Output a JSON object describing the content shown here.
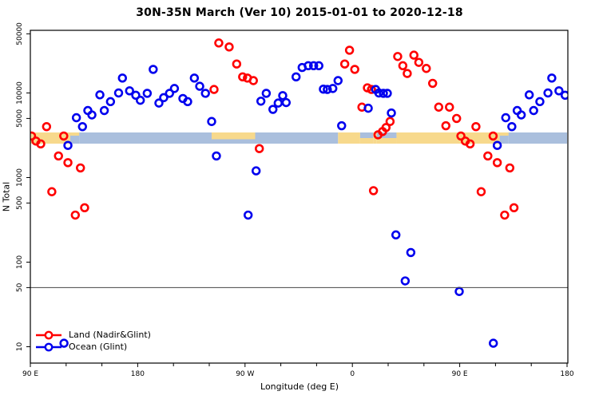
{
  "title": "30N-35N March (Ver 10)   2015-01-01 to 2020-12-18",
  "chart_data": {
    "type": "scatter",
    "title": "30N-35N March (Ver 10)   2015-01-01 to 2020-12-18",
    "xlabel": "Longitude (deg E)",
    "ylabel": "N Total",
    "x_axis": {
      "note": "longitude axis spans 450 deg, wrapping: 90E..180..90W..0..90E..180; points with lon 90E-180E are drawn twice",
      "range_deg_continuous": [
        90,
        540
      ],
      "major_ticks": [
        {
          "deg": 90,
          "label": "90 E"
        },
        {
          "deg": 180,
          "label": "180"
        },
        {
          "deg": 270,
          "label": "90 W"
        },
        {
          "deg": 360,
          "label": "0"
        },
        {
          "deg": 450,
          "label": "90 E"
        },
        {
          "deg": 540,
          "label": "180"
        }
      ],
      "minor_ticks_deg": [
        120,
        150,
        210,
        240,
        300,
        330,
        390,
        420,
        480,
        510
      ]
    },
    "y_axis": {
      "scale": "log10",
      "range": [
        6,
        55000
      ],
      "ticks": [
        10,
        50,
        100,
        500,
        1000,
        5000,
        10000,
        50000
      ],
      "reference_line": 50
    },
    "legend": {
      "position": "bottom-left",
      "entries": [
        {
          "label": "Land (Nadir&Glint)",
          "color": "#ff0000"
        },
        {
          "label": "Ocean (Glint)",
          "color": "#0000ee"
        }
      ]
    },
    "map_band": {
      "description": "30N-35N latitude strip of world map drawn across plot at N~2500-3400",
      "n_top": 3400,
      "n_bottom": 2500,
      "land_color": "#f7d98c",
      "ocean_color": "#aabfdd",
      "segments": [
        {
          "from": 90,
          "to": 123.5,
          "type": "land"
        },
        {
          "from": 123.5,
          "to": 131,
          "type": "islands"
        },
        {
          "from": 131,
          "to": 242,
          "type": "ocean"
        },
        {
          "from": 242,
          "to": 278.5,
          "type": "land_top"
        },
        {
          "from": 278.5,
          "to": 348,
          "type": "ocean"
        },
        {
          "from": 348,
          "to": 366.5,
          "type": "land"
        },
        {
          "from": 366.5,
          "to": 377.5,
          "type": "ocean_top"
        },
        {
          "from": 377.5,
          "to": 380.5,
          "type": "land"
        },
        {
          "from": 380.5,
          "to": 397,
          "type": "ocean_top"
        },
        {
          "from": 397,
          "to": 483.5,
          "type": "land"
        },
        {
          "from": 483.5,
          "to": 491,
          "type": "islands"
        },
        {
          "from": 491,
          "to": 540,
          "type": "ocean"
        }
      ]
    },
    "series": [
      {
        "name": "Land (Nadir&Glint)",
        "color": "#ff0000",
        "marker": "open-circle",
        "points_lon_n": [
          [
            91,
            3100
          ],
          [
            94.7,
            2700
          ],
          [
            98.7,
            2500
          ],
          [
            103.6,
            4000
          ],
          [
            108,
            680
          ],
          [
            113.6,
            1800
          ],
          [
            118,
            3100
          ],
          [
            121.5,
            1500
          ],
          [
            127.7,
            360
          ],
          [
            132,
            1300
          ],
          [
            135.5,
            440
          ],
          [
            244,
            11000
          ],
          [
            248,
            39000
          ],
          [
            256.7,
            35000
          ],
          [
            263,
            22000
          ],
          [
            268,
            15500
          ],
          [
            272,
            15000
          ],
          [
            277,
            14000
          ],
          [
            282,
            2200
          ],
          [
            353.6,
            22000
          ],
          [
            357.6,
            32000
          ],
          [
            2,
            19000
          ],
          [
            8,
            6800
          ],
          [
            12.6,
            11500
          ],
          [
            16,
            11000
          ],
          [
            17.7,
            700
          ],
          [
            21.5,
            3200
          ],
          [
            25.3,
            3500
          ],
          [
            28.2,
            3900
          ],
          [
            31.6,
            4600
          ],
          [
            38,
            27000
          ],
          [
            42.3,
            21000
          ],
          [
            46,
            17000
          ],
          [
            51.6,
            28000
          ],
          [
            55.7,
            23000
          ],
          [
            62,
            19500
          ],
          [
            67.3,
            13000
          ],
          [
            72.4,
            6800
          ],
          [
            78.4,
            4100
          ],
          [
            81.4,
            6800
          ],
          [
            87.4,
            5000
          ]
        ]
      },
      {
        "name": "Ocean (Glint)",
        "color": "#0000ee",
        "marker": "open-circle",
        "points_lon_n": [
          [
            118.2,
            11
          ],
          [
            121.5,
            2400
          ],
          [
            128.6,
            5100
          ],
          [
            133.7,
            4000
          ],
          [
            138.2,
            6200
          ],
          [
            141.6,
            5500
          ],
          [
            148.3,
            9500
          ],
          [
            152,
            6200
          ],
          [
            157.2,
            7900
          ],
          [
            164,
            10000
          ],
          [
            167.2,
            15000
          ],
          [
            173.2,
            10600
          ],
          [
            178.4,
            9400
          ],
          [
            182.2,
            8200
          ],
          [
            188,
            9900
          ],
          [
            193,
            19000
          ],
          [
            197.8,
            7600
          ],
          [
            201.8,
            8800
          ],
          [
            206.7,
            9900
          ],
          [
            210.8,
            11300
          ],
          [
            217.9,
            8600
          ],
          [
            221.9,
            7900
          ],
          [
            227.5,
            15000
          ],
          [
            232,
            12000
          ],
          [
            236.8,
            9900
          ],
          [
            242,
            4600
          ],
          [
            246,
            1800
          ],
          [
            272.6,
            360
          ],
          [
            279.3,
            1200
          ],
          [
            283.3,
            8000
          ],
          [
            287.8,
            9900
          ],
          [
            293.4,
            6400
          ],
          [
            297.8,
            7600
          ],
          [
            301.6,
            9300
          ],
          [
            304.5,
            7700
          ],
          [
            312.8,
            15500
          ],
          [
            317.9,
            20000
          ],
          [
            323,
            21000
          ],
          [
            327.5,
            21000
          ],
          [
            331.9,
            21000
          ],
          [
            335.7,
            11100
          ],
          [
            339,
            11000
          ],
          [
            343.6,
            11300
          ],
          [
            348,
            14000
          ],
          [
            351,
            4100
          ],
          [
            13.3,
            6600
          ],
          [
            19.5,
            11000
          ],
          [
            22.2,
            10000
          ],
          [
            26,
            9900
          ],
          [
            29.3,
            9900
          ],
          [
            32.7,
            5800
          ],
          [
            36.5,
            210
          ],
          [
            44.3,
            60
          ],
          [
            49,
            130
          ],
          [
            89.6,
            45
          ]
        ]
      }
    ]
  }
}
